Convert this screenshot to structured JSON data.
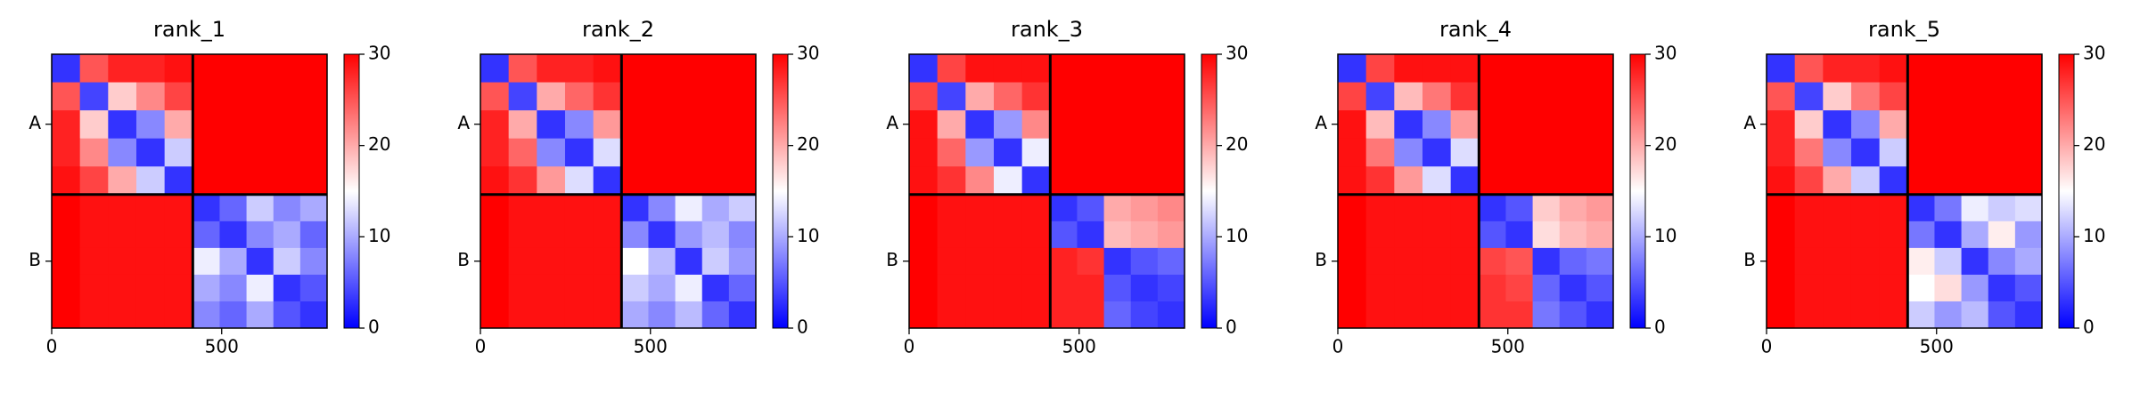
{
  "chart_data": [
    {
      "type": "heatmap",
      "title": "rank_1",
      "colormap": "bwr",
      "clim": [
        0,
        30
      ],
      "cticks": [
        0,
        10,
        20,
        30
      ],
      "xlim": [
        0,
        810
      ],
      "ylim": [
        810,
        0
      ],
      "xticks": [
        0,
        500
      ],
      "yticks": [
        {
          "value": 207,
          "label": "A"
        },
        {
          "value": 612,
          "label": "B"
        }
      ],
      "chain_boundary": 415,
      "edges": [
        0,
        83,
        166,
        249,
        332,
        415,
        494,
        573,
        652,
        731,
        810
      ],
      "z": [
        [
          3,
          25,
          28,
          28,
          29,
          30,
          30,
          30,
          30,
          30
        ],
        [
          25,
          4,
          18,
          22,
          26,
          30,
          30,
          30,
          30,
          30
        ],
        [
          28,
          18,
          3,
          8,
          20,
          30,
          30,
          30,
          30,
          30
        ],
        [
          28,
          22,
          8,
          3,
          12,
          30,
          30,
          30,
          30,
          30
        ],
        [
          29,
          26,
          20,
          12,
          3,
          30,
          30,
          30,
          30,
          30
        ],
        [
          30,
          29,
          29,
          29,
          29,
          3,
          6,
          12,
          8,
          10
        ],
        [
          30,
          29,
          29,
          29,
          29,
          6,
          3,
          8,
          10,
          6
        ],
        [
          30,
          29,
          29,
          29,
          29,
          14,
          10,
          3,
          12,
          8
        ],
        [
          30,
          29,
          29,
          29,
          29,
          10,
          8,
          14,
          3,
          5
        ],
        [
          30,
          29,
          29,
          29,
          29,
          8,
          6,
          10,
          5,
          3
        ]
      ]
    },
    {
      "type": "heatmap",
      "title": "rank_2",
      "colormap": "bwr",
      "clim": [
        0,
        30
      ],
      "cticks": [
        0,
        10,
        20,
        30
      ],
      "xlim": [
        0,
        810
      ],
      "ylim": [
        810,
        0
      ],
      "xticks": [
        0,
        500
      ],
      "yticks": [
        {
          "value": 207,
          "label": "A"
        },
        {
          "value": 612,
          "label": "B"
        }
      ],
      "chain_boundary": 415,
      "edges": [
        0,
        83,
        166,
        249,
        332,
        415,
        494,
        573,
        652,
        731,
        810
      ],
      "z": [
        [
          3,
          25,
          28,
          28,
          29,
          30,
          30,
          30,
          30,
          30
        ],
        [
          25,
          4,
          20,
          24,
          27,
          30,
          30,
          30,
          30,
          30
        ],
        [
          28,
          20,
          3,
          8,
          21,
          30,
          30,
          30,
          30,
          30
        ],
        [
          28,
          24,
          8,
          3,
          13,
          30,
          30,
          30,
          30,
          30
        ],
        [
          29,
          27,
          21,
          13,
          3,
          30,
          30,
          30,
          30,
          30
        ],
        [
          30,
          29,
          29,
          29,
          29,
          3,
          8,
          14,
          10,
          12
        ],
        [
          30,
          29,
          29,
          29,
          29,
          8,
          3,
          9,
          11,
          8
        ],
        [
          30,
          29,
          29,
          29,
          29,
          15,
          11,
          3,
          12,
          9
        ],
        [
          30,
          29,
          29,
          29,
          29,
          12,
          10,
          14,
          3,
          6
        ],
        [
          30,
          29,
          29,
          29,
          29,
          10,
          8,
          11,
          6,
          3
        ]
      ]
    },
    {
      "type": "heatmap",
      "title": "rank_3",
      "colormap": "bwr",
      "clim": [
        0,
        30
      ],
      "cticks": [
        0,
        10,
        20,
        30
      ],
      "xlim": [
        0,
        810
      ],
      "ylim": [
        810,
        0
      ],
      "xticks": [
        0,
        500
      ],
      "yticks": [
        {
          "value": 207,
          "label": "A"
        },
        {
          "value": 612,
          "label": "B"
        }
      ],
      "chain_boundary": 415,
      "edges": [
        0,
        83,
        166,
        249,
        332,
        415,
        494,
        573,
        652,
        731,
        810
      ],
      "z": [
        [
          3,
          26,
          29,
          29,
          29,
          30,
          30,
          30,
          30,
          30
        ],
        [
          26,
          4,
          20,
          24,
          27,
          30,
          30,
          30,
          30,
          30
        ],
        [
          29,
          20,
          3,
          9,
          22,
          30,
          30,
          30,
          30,
          30
        ],
        [
          29,
          24,
          9,
          3,
          14,
          30,
          30,
          30,
          30,
          30
        ],
        [
          29,
          27,
          22,
          14,
          3,
          30,
          30,
          30,
          30,
          30
        ],
        [
          30,
          29,
          29,
          29,
          29,
          3,
          5,
          20,
          21,
          22
        ],
        [
          30,
          29,
          29,
          29,
          29,
          5,
          3,
          19,
          20,
          21
        ],
        [
          30,
          29,
          29,
          29,
          29,
          28,
          27,
          3,
          5,
          6
        ],
        [
          30,
          29,
          29,
          29,
          29,
          28,
          28,
          5,
          3,
          4
        ],
        [
          30,
          29,
          29,
          29,
          29,
          28,
          28,
          6,
          4,
          3
        ]
      ]
    },
    {
      "type": "heatmap",
      "title": "rank_4",
      "colormap": "bwr",
      "clim": [
        0,
        30
      ],
      "cticks": [
        0,
        10,
        20,
        30
      ],
      "xlim": [
        0,
        810
      ],
      "ylim": [
        810,
        0
      ],
      "xticks": [
        0,
        500
      ],
      "yticks": [
        {
          "value": 207,
          "label": "A"
        },
        {
          "value": 612,
          "label": "B"
        }
      ],
      "chain_boundary": 415,
      "edges": [
        0,
        83,
        166,
        249,
        332,
        415,
        494,
        573,
        652,
        731,
        810
      ],
      "z": [
        [
          3,
          26,
          29,
          29,
          29,
          30,
          30,
          30,
          30,
          30
        ],
        [
          26,
          4,
          19,
          23,
          27,
          30,
          30,
          30,
          30,
          30
        ],
        [
          29,
          19,
          3,
          8,
          21,
          30,
          30,
          30,
          30,
          30
        ],
        [
          29,
          23,
          8,
          3,
          13,
          30,
          30,
          30,
          30,
          30
        ],
        [
          29,
          27,
          21,
          13,
          3,
          30,
          30,
          30,
          30,
          30
        ],
        [
          30,
          29,
          29,
          29,
          29,
          3,
          5,
          18,
          20,
          21
        ],
        [
          30,
          29,
          29,
          29,
          29,
          5,
          3,
          17,
          19,
          20
        ],
        [
          30,
          29,
          29,
          29,
          29,
          26,
          25,
          3,
          6,
          7
        ],
        [
          30,
          29,
          29,
          29,
          29,
          27,
          26,
          6,
          3,
          5
        ],
        [
          30,
          29,
          29,
          29,
          29,
          27,
          27,
          7,
          5,
          3
        ]
      ]
    },
    {
      "type": "heatmap",
      "title": "rank_5",
      "colormap": "bwr",
      "clim": [
        0,
        30
      ],
      "cticks": [
        0,
        10,
        20,
        30
      ],
      "xlim": [
        0,
        810
      ],
      "ylim": [
        810,
        0
      ],
      "xticks": [
        0,
        500
      ],
      "yticks": [
        {
          "value": 207,
          "label": "A"
        },
        {
          "value": 612,
          "label": "B"
        }
      ],
      "chain_boundary": 415,
      "edges": [
        0,
        83,
        166,
        249,
        332,
        415,
        494,
        573,
        652,
        731,
        810
      ],
      "z": [
        [
          3,
          25,
          28,
          28,
          29,
          30,
          30,
          30,
          30,
          30
        ],
        [
          25,
          4,
          18,
          23,
          26,
          30,
          30,
          30,
          30,
          30
        ],
        [
          28,
          18,
          3,
          8,
          20,
          30,
          30,
          30,
          30,
          30
        ],
        [
          28,
          23,
          8,
          3,
          12,
          30,
          30,
          30,
          30,
          30
        ],
        [
          29,
          26,
          20,
          12,
          3,
          30,
          30,
          30,
          30,
          30
        ],
        [
          30,
          29,
          29,
          29,
          29,
          3,
          7,
          14,
          12,
          13
        ],
        [
          30,
          29,
          29,
          29,
          29,
          7,
          3,
          10,
          16,
          9
        ],
        [
          30,
          29,
          29,
          29,
          29,
          16,
          12,
          3,
          8,
          10
        ],
        [
          30,
          29,
          29,
          29,
          29,
          15,
          17,
          9,
          3,
          5
        ],
        [
          30,
          29,
          29,
          29,
          29,
          12,
          9,
          11,
          5,
          3
        ]
      ]
    }
  ]
}
